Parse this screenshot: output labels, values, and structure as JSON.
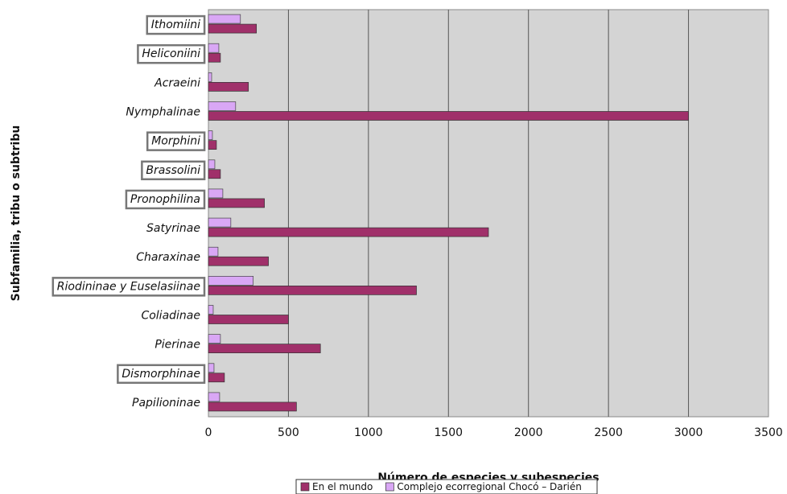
{
  "chart_data": {
    "type": "bar",
    "orientation": "horizontal",
    "title": "",
    "xlabel": "Número de especies y subespecies",
    "ylabel": "Subfamilia, tribu o subtribu",
    "xlim": [
      0,
      3500
    ],
    "xticks": [
      "0",
      "500",
      "1000",
      "1500",
      "2000",
      "2500",
      "3000",
      "3500"
    ],
    "grid": "vertical",
    "plot_background": "#d4d4d4",
    "legend_position": "bottom",
    "categories": [
      "Ithomiini",
      "Heliconiini",
      "Acraeini",
      "Nymphalinae",
      "Morphini",
      "Brassolini",
      "Pronophilina",
      "Satyrinae",
      "Charaxinae",
      "Riodininae y Euselasiinae",
      "Coliadinae",
      "Pierinae",
      "Dismorphinae",
      "Papilioninae"
    ],
    "boxed_categories": [
      "Ithomiini",
      "Heliconiini",
      "Morphini",
      "Brassolini",
      "Pronophilina",
      "Riodininae y Euselasiinae",
      "Dismorphinae"
    ],
    "series": [
      {
        "name": "Complejo ecorregional Chocó – Darién",
        "color": "#d9a7f5",
        "values": [
          200,
          65,
          20,
          170,
          25,
          40,
          90,
          140,
          60,
          280,
          30,
          75,
          35,
          70
        ]
      },
      {
        "name": "En el mundo",
        "color": "#a0306a",
        "values": [
          300,
          75,
          250,
          3000,
          50,
          75,
          350,
          1750,
          375,
          1300,
          500,
          700,
          100,
          550
        ]
      }
    ],
    "legend_order": [
      "En el mundo",
      "Complejo ecorregional Chocó – Darién"
    ]
  }
}
